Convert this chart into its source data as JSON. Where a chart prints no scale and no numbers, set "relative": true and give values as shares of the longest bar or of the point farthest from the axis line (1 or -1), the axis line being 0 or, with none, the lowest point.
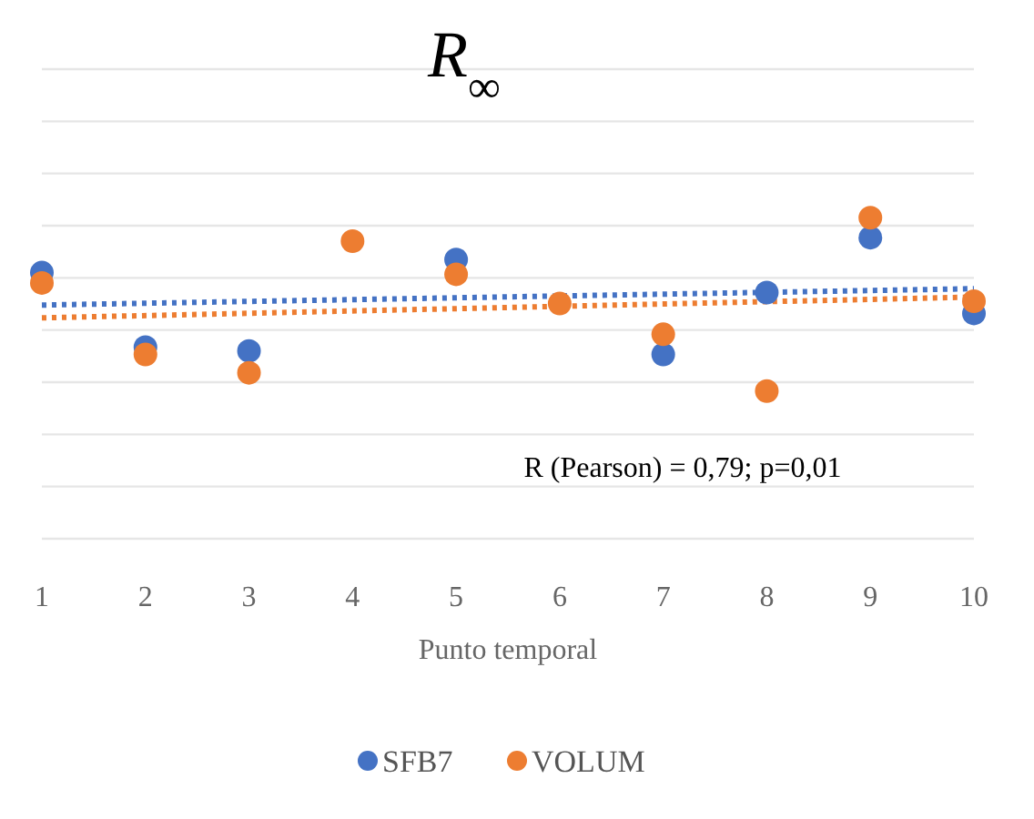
{
  "chart_data": {
    "type": "scatter",
    "title": "R$_{∞}$",
    "xlabel": "Punto temporal",
    "relative": true,
    "grid": "y",
    "legend": "bottom",
    "marker": "circle",
    "categories": [
      "1",
      "2",
      "3",
      "4",
      "5",
      "6",
      "7",
      "8",
      "9",
      "10"
    ],
    "series": [
      {
        "name": "SFB7",
        "color": "#4472c4",
        "values": [
          0.829,
          0.597,
          0.585,
          null,
          0.87,
          null,
          0.574,
          0.767,
          0.938,
          0.702
        ]
      },
      {
        "name": "VOLUM",
        "color": "#ed7d31",
        "values": [
          0.797,
          0.574,
          0.517,
          0.927,
          0.824,
          0.733,
          0.637,
          0.46,
          1,
          0.74
        ]
      },
      {
        "type": "line",
        "color": "#4472c4",
        "line_style": "dotted",
        "marker": "none",
        "x": [
          "1",
          "10"
        ],
        "values": [
          0.728,
          0.779
        ]
      },
      {
        "type": "line",
        "color": "#ed7d31",
        "line_style": "dotted",
        "marker": "none",
        "x": [
          "1",
          "10"
        ],
        "values": [
          0.688,
          0.753
        ]
      }
    ],
    "annotations": [
      "R (Pearson) = 0,79; p=0,01"
    ]
  }
}
